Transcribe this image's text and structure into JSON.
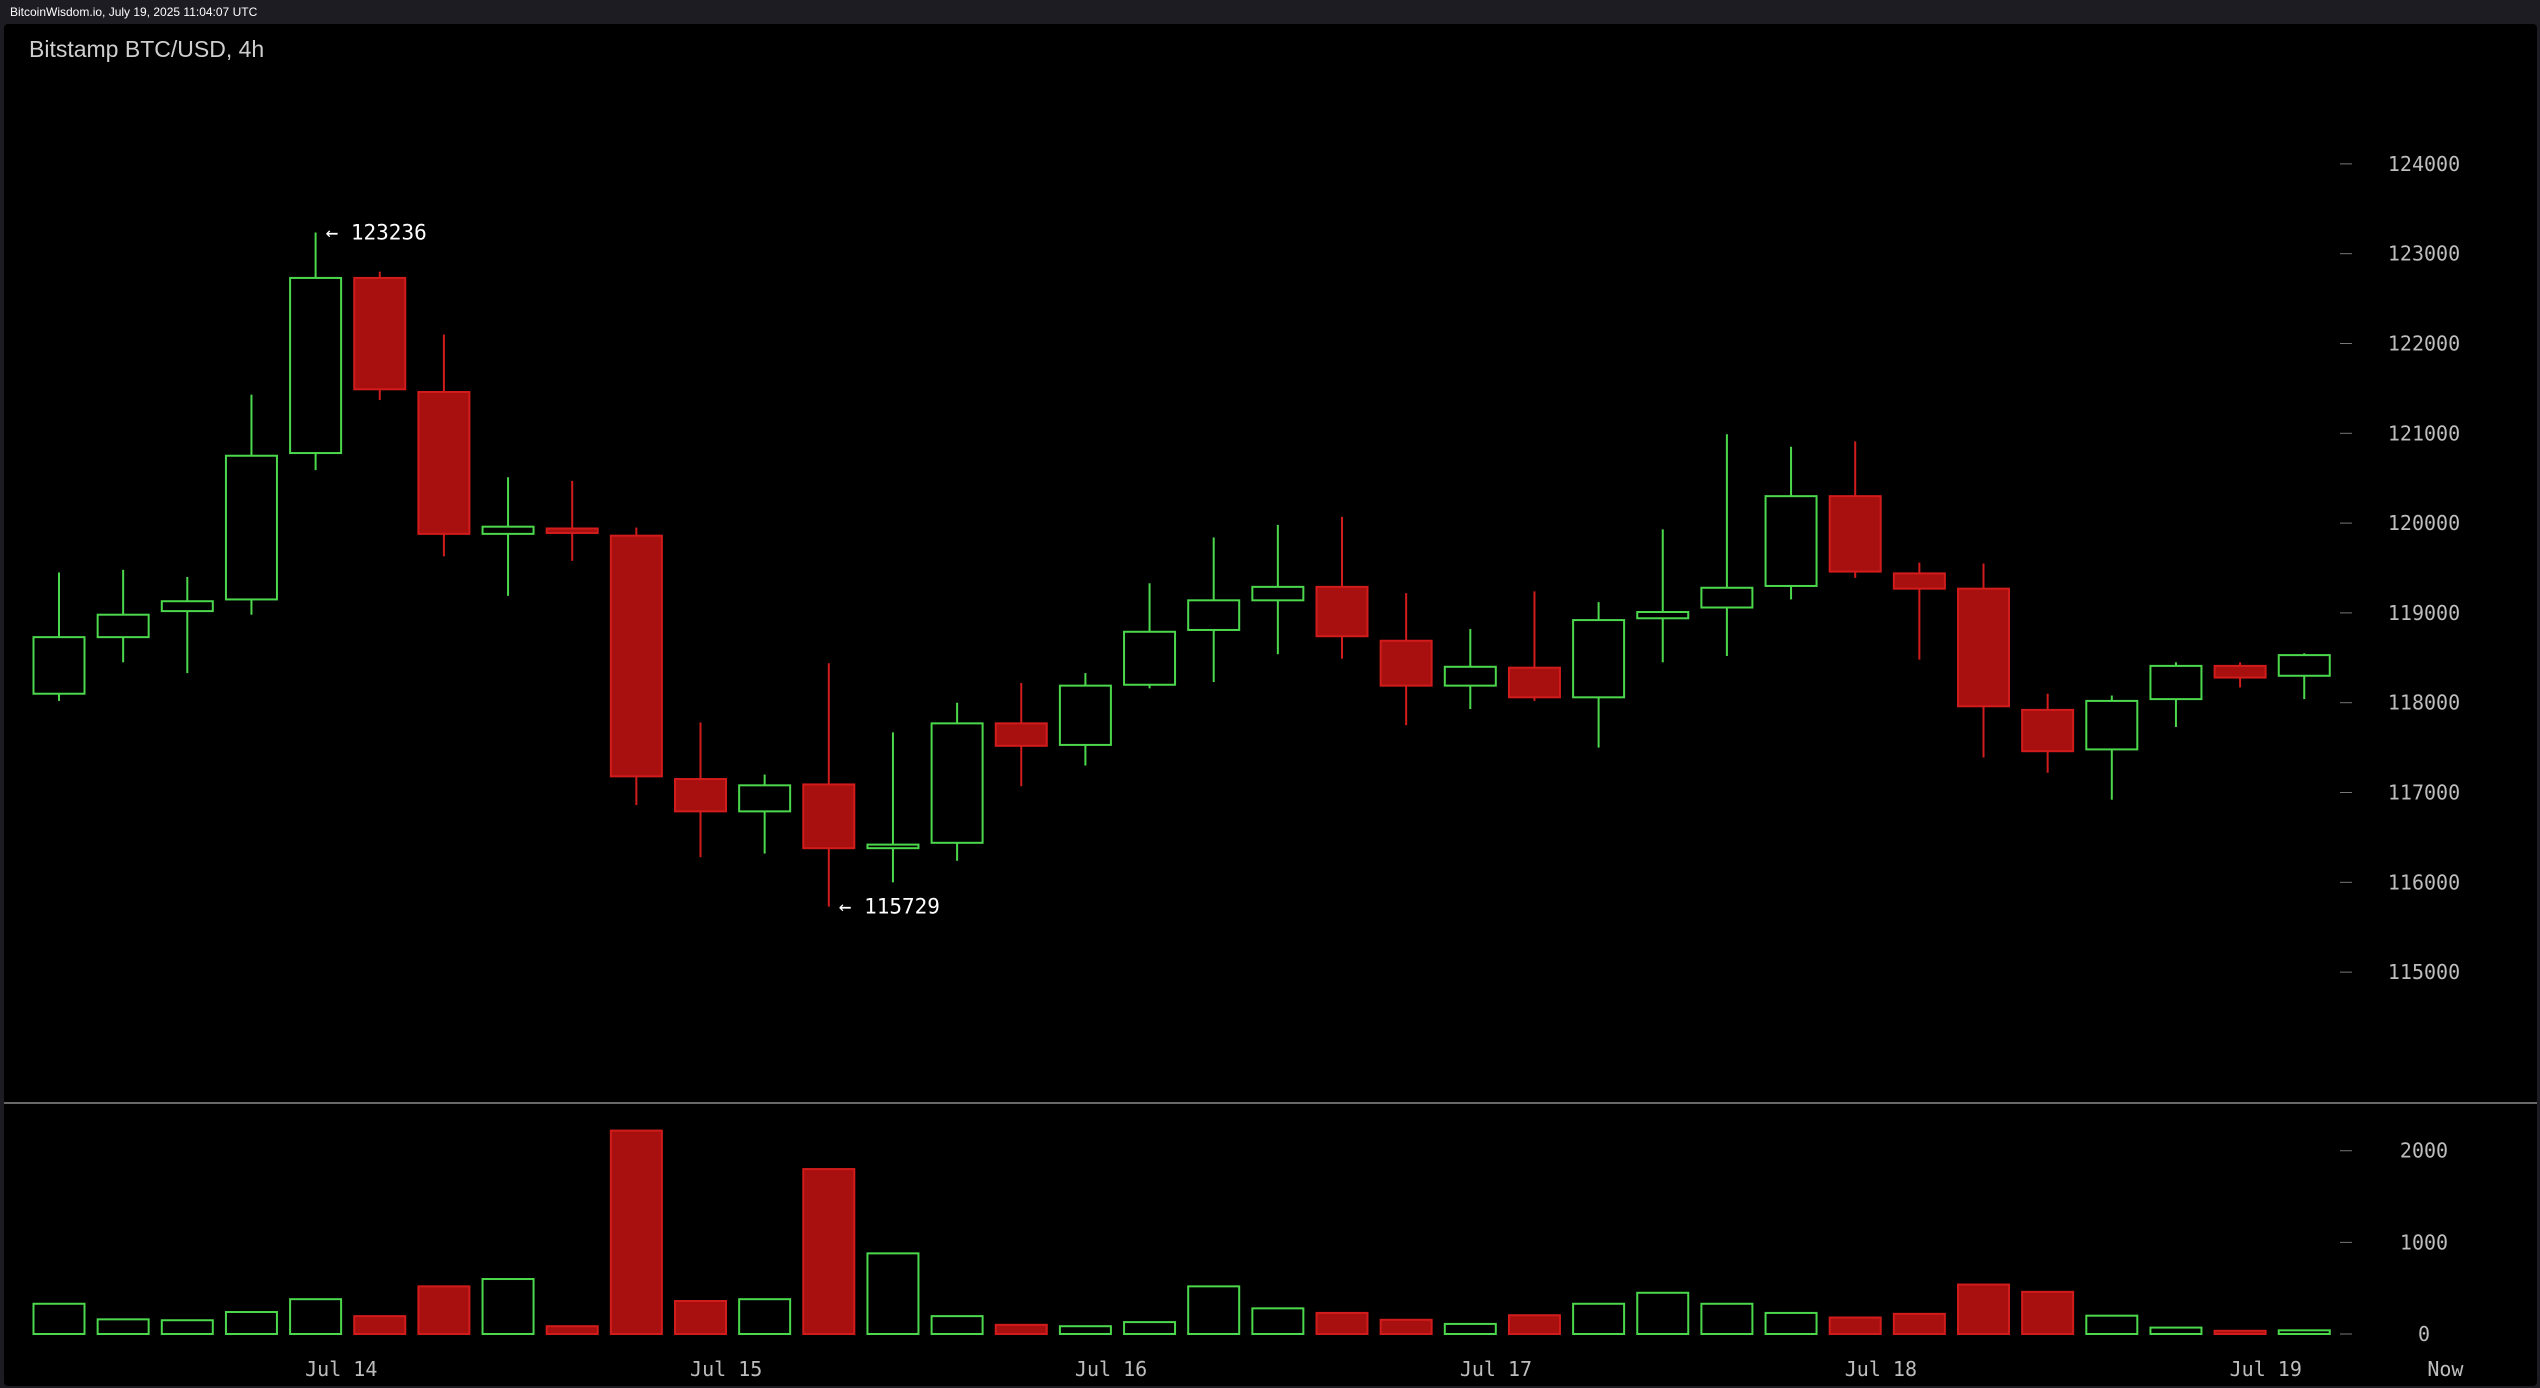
{
  "header": {
    "site_label": "BitcoinWisdom.io, July 19, 2025 11:04:07 UTC"
  },
  "chart_data": {
    "type": "candlestick",
    "title": "Bitstamp BTC/USD, 4h",
    "colors": {
      "up": "#4cd84c",
      "down": "#a80f0f",
      "down_edge": "#d21c1c",
      "grid": "#777777",
      "text": "#bdbdbd"
    },
    "price_axis": {
      "ylim": [
        114400,
        124600
      ],
      "ticks": [
        124000,
        123000,
        122000,
        121000,
        120000,
        119000,
        118000,
        117000,
        116000,
        115000
      ]
    },
    "volume_axis": {
      "ylim": [
        0,
        2270
      ],
      "ticks": [
        2000,
        1000,
        0
      ]
    },
    "x_labels": [
      {
        "label": "Jul 14",
        "index": 4.4
      },
      {
        "label": "Jul 15",
        "index": 10.4
      },
      {
        "label": "Jul 16",
        "index": 16.4
      },
      {
        "label": "Jul 17",
        "index": 22.4
      },
      {
        "label": "Jul 18",
        "index": 28.4
      },
      {
        "label": "Jul 19",
        "index": 34.4
      },
      {
        "label": "Now",
        "index": 37.2
      }
    ],
    "annotations": [
      {
        "text": "← 123236",
        "index": 4,
        "price": 123236
      },
      {
        "text": "← 115729",
        "index": 12,
        "price": 115729
      }
    ],
    "candles": [
      {
        "o": 118100,
        "h": 119450,
        "l": 118020,
        "c": 118730,
        "v": 330
      },
      {
        "o": 118730,
        "h": 119480,
        "l": 118450,
        "c": 118980,
        "v": 160
      },
      {
        "o": 119020,
        "h": 119400,
        "l": 118330,
        "c": 119130,
        "v": 150
      },
      {
        "o": 119150,
        "h": 121430,
        "l": 118980,
        "c": 120750,
        "v": 240
      },
      {
        "o": 120780,
        "h": 123236,
        "l": 120590,
        "c": 122730,
        "v": 380
      },
      {
        "o": 122730,
        "h": 122800,
        "l": 121370,
        "c": 121490,
        "v": 195
      },
      {
        "o": 121460,
        "h": 122100,
        "l": 119630,
        "c": 119880,
        "v": 520
      },
      {
        "o": 119880,
        "h": 120510,
        "l": 119190,
        "c": 119960,
        "v": 600
      },
      {
        "o": 119940,
        "h": 120470,
        "l": 119580,
        "c": 119890,
        "v": 85
      },
      {
        "o": 119860,
        "h": 119950,
        "l": 116860,
        "c": 117180,
        "v": 2220
      },
      {
        "o": 117150,
        "h": 117780,
        "l": 116280,
        "c": 116790,
        "v": 360
      },
      {
        "o": 116790,
        "h": 117200,
        "l": 116320,
        "c": 117080,
        "v": 380
      },
      {
        "o": 117090,
        "h": 118440,
        "l": 115729,
        "c": 116380,
        "v": 1800
      },
      {
        "o": 116380,
        "h": 117670,
        "l": 116000,
        "c": 116420,
        "v": 880
      },
      {
        "o": 116440,
        "h": 118000,
        "l": 116240,
        "c": 117770,
        "v": 195
      },
      {
        "o": 117770,
        "h": 118220,
        "l": 117070,
        "c": 117520,
        "v": 100
      },
      {
        "o": 117530,
        "h": 118330,
        "l": 117300,
        "c": 118190,
        "v": 85
      },
      {
        "o": 118200,
        "h": 119330,
        "l": 118160,
        "c": 118790,
        "v": 130
      },
      {
        "o": 118810,
        "h": 119840,
        "l": 118230,
        "c": 119140,
        "v": 520
      },
      {
        "o": 119140,
        "h": 119980,
        "l": 118540,
        "c": 119290,
        "v": 280
      },
      {
        "o": 119290,
        "h": 120070,
        "l": 118490,
        "c": 118740,
        "v": 230
      },
      {
        "o": 118690,
        "h": 119220,
        "l": 117750,
        "c": 118190,
        "v": 155
      },
      {
        "o": 118190,
        "h": 118820,
        "l": 117930,
        "c": 118400,
        "v": 110
      },
      {
        "o": 118390,
        "h": 119240,
        "l": 118020,
        "c": 118060,
        "v": 205
      },
      {
        "o": 118060,
        "h": 119120,
        "l": 117500,
        "c": 118920,
        "v": 330
      },
      {
        "o": 118940,
        "h": 119930,
        "l": 118450,
        "c": 119010,
        "v": 450
      },
      {
        "o": 119060,
        "h": 120990,
        "l": 118520,
        "c": 119280,
        "v": 330
      },
      {
        "o": 119300,
        "h": 120850,
        "l": 119150,
        "c": 120300,
        "v": 230
      },
      {
        "o": 120300,
        "h": 120910,
        "l": 119390,
        "c": 119460,
        "v": 180
      },
      {
        "o": 119440,
        "h": 119560,
        "l": 118480,
        "c": 119270,
        "v": 220
      },
      {
        "o": 119270,
        "h": 119550,
        "l": 117390,
        "c": 117960,
        "v": 540
      },
      {
        "o": 117920,
        "h": 118100,
        "l": 117220,
        "c": 117460,
        "v": 460
      },
      {
        "o": 117480,
        "h": 118080,
        "l": 116920,
        "c": 118020,
        "v": 200
      },
      {
        "o": 118040,
        "h": 118450,
        "l": 117730,
        "c": 118410,
        "v": 70
      },
      {
        "o": 118410,
        "h": 118450,
        "l": 118170,
        "c": 118280,
        "v": 35
      },
      {
        "o": 118300,
        "h": 118550,
        "l": 118040,
        "c": 118530,
        "v": 40
      }
    ]
  }
}
